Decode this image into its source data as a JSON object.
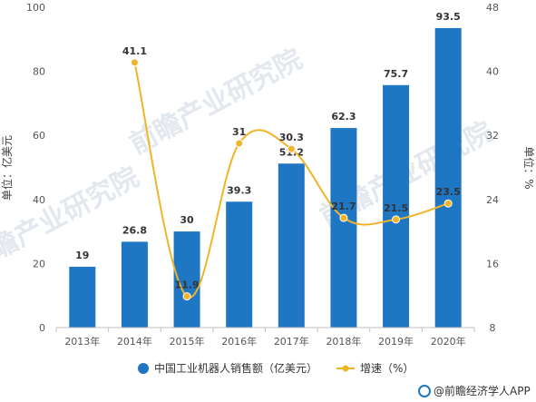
{
  "chart_data": {
    "type": "bar",
    "categories": [
      "2013年",
      "2014年",
      "2015年",
      "2016年",
      "2017年",
      "2018年",
      "2019年",
      "2020年"
    ],
    "series": [
      {
        "name": "中国工业机器人销售额（亿美元）",
        "type": "bar",
        "axis": "left",
        "values": [
          19,
          26.8,
          30,
          39.3,
          51.2,
          62.3,
          75.7,
          93.5
        ],
        "labels": [
          "19",
          "26.8",
          "30",
          "39.3",
          "51.2",
          "62.3",
          "75.7",
          "93.5"
        ],
        "color": "#1f77c4"
      },
      {
        "name": "增速（%）",
        "type": "line",
        "axis": "right",
        "values": [
          null,
          41.1,
          11.9,
          31,
          30.3,
          21.7,
          21.5,
          23.5
        ],
        "labels": [
          "",
          "41.1",
          "11.9",
          "31",
          "30.3",
          "21.7",
          "21.5",
          "23.5"
        ],
        "color": "#f0b429"
      }
    ],
    "ylabel_left": "单位：亿美元",
    "ylabel_right": "单位：%",
    "ylim_left": [
      0,
      100
    ],
    "ylim_right": [
      8,
      48
    ],
    "yticks_left": [
      "0",
      "20",
      "40",
      "60",
      "80",
      "100"
    ],
    "yticks_right": [
      "8",
      "16",
      "24",
      "32",
      "40",
      "48"
    ],
    "legend_position": "bottom",
    "grid": false
  },
  "watermark": "前瞻产业研究院",
  "source": "@前瞻经济学人APP"
}
